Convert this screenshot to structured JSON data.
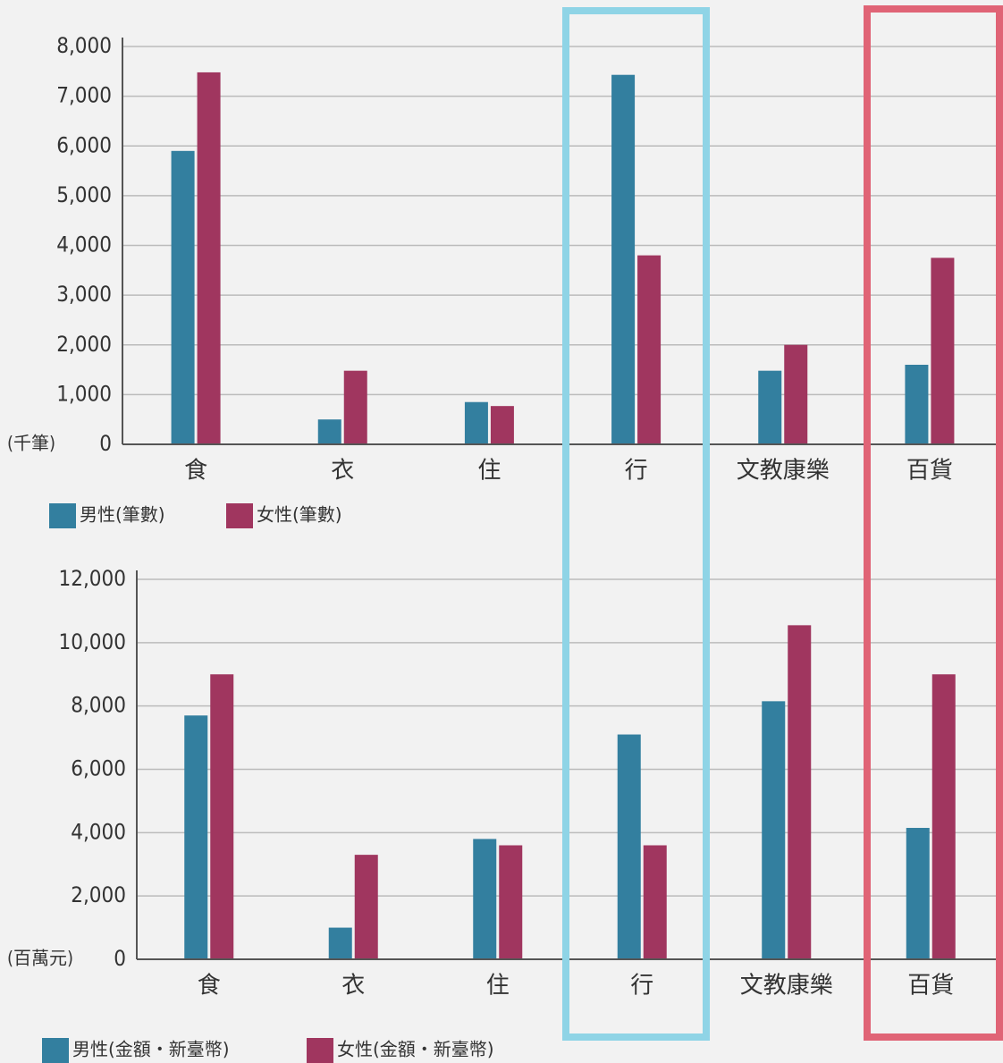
{
  "chart_data": [
    {
      "type": "bar",
      "ylabel": "(千筆)",
      "categories": [
        "食",
        "衣",
        "住",
        "行",
        "文教康樂",
        "百貨"
      ],
      "series": [
        {
          "name": "男性(筆數)",
          "color": "#337f9f",
          "values": [
            5900,
            500,
            850,
            7430,
            1480,
            1600
          ]
        },
        {
          "name": "女性(筆數)",
          "color": "#a0365f",
          "values": [
            7480,
            1480,
            770,
            3800,
            2000,
            3750
          ]
        }
      ],
      "ylim": [
        0,
        8000
      ],
      "yticks": [
        0,
        {
          "value": 1000,
          "label": "1,000"
        },
        {
          "value": 2000,
          "label": "2,000"
        },
        {
          "value": 3000,
          "label": "3,000"
        },
        {
          "value": 4000,
          "label": "4,000"
        },
        {
          "value": 5000,
          "label": "5,000"
        },
        {
          "value": 6000,
          "label": "6,000"
        },
        {
          "value": 7000,
          "label": "7,000"
        },
        {
          "value": 8000,
          "label": "8,000"
        }
      ],
      "grid": true
    },
    {
      "type": "bar",
      "ylabel": "(百萬元)",
      "categories": [
        "食",
        "衣",
        "住",
        "行",
        "文教康樂",
        "百貨"
      ],
      "series": [
        {
          "name": "男性(金額・新臺幣)",
          "color": "#337f9f",
          "values": [
            7700,
            1000,
            3800,
            7100,
            8150,
            4150
          ]
        },
        {
          "name": "女性(金額・新臺幣)",
          "color": "#a0365f",
          "values": [
            9000,
            3300,
            3600,
            3600,
            10550,
            9000
          ]
        }
      ],
      "ylim": [
        0,
        12000
      ],
      "yticks": [
        0,
        {
          "value": 2000,
          "label": "2,000"
        },
        {
          "value": 4000,
          "label": "4,000"
        },
        {
          "value": 6000,
          "label": "6,000"
        },
        {
          "value": 8000,
          "label": "8,000"
        },
        {
          "value": 10000,
          "label": "10,000"
        },
        {
          "value": 12000,
          "label": "12,000"
        }
      ],
      "grid": true
    }
  ]
}
